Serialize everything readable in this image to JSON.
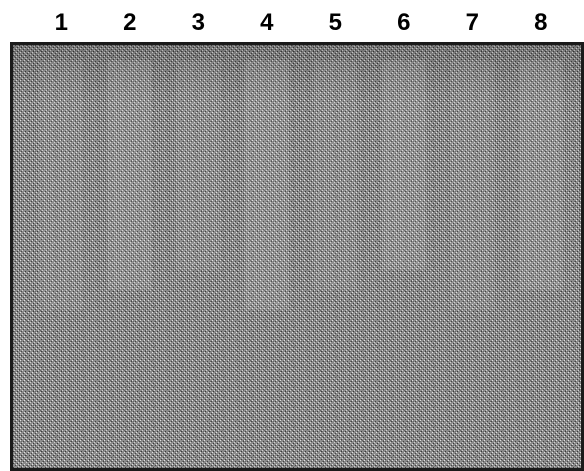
{
  "gel": {
    "lane_labels": [
      "1",
      "2",
      "3",
      "4",
      "5",
      "6",
      "7",
      "8"
    ]
  }
}
